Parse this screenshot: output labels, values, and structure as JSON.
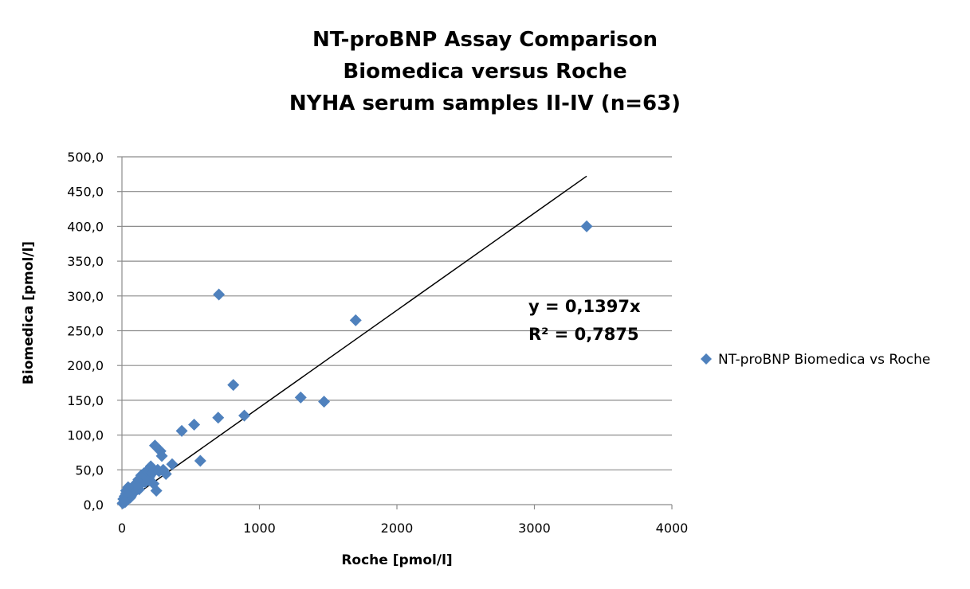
{
  "chart_data": {
    "type": "scatter",
    "title": [
      "NT-proBNP Assay Comparison",
      "Biomedica versus Roche",
      "NYHA serum samples II-IV (n=63)"
    ],
    "xlabel": "Roche [pmol/l]",
    "ylabel": "Biomedica [pmol/l]",
    "xlim": [
      0,
      4000
    ],
    "ylim": [
      0,
      500
    ],
    "x_ticks": [
      "0",
      "1000",
      "2000",
      "3000",
      "4000"
    ],
    "y_ticks": [
      "0,0",
      "50,0",
      "100,0",
      "150,0",
      "200,0",
      "250,0",
      "300,0",
      "350,0",
      "400,0",
      "450,0",
      "500,0"
    ],
    "x_tick_values": [
      0,
      1000,
      2000,
      3000,
      4000
    ],
    "y_tick_values": [
      0,
      50,
      100,
      150,
      200,
      250,
      300,
      350,
      400,
      450,
      500
    ],
    "grid": "horizontal",
    "legend_position": "right",
    "series": [
      {
        "name": "NT-proBNP Biomedica vs Roche",
        "color": "#4f81bd",
        "marker": "diamond",
        "x": [
          3380,
          705,
          1700,
          810,
          1300,
          1470,
          890,
          700,
          525,
          435,
          570,
          365,
          320,
          240,
          280,
          290,
          260,
          210,
          250,
          230,
          200,
          185,
          170,
          150,
          140,
          130,
          120,
          110,
          100,
          95,
          90,
          85,
          80,
          75,
          70,
          65,
          60,
          55,
          50,
          45,
          40,
          35,
          30,
          25,
          20,
          15,
          10,
          5,
          160,
          145,
          135,
          125,
          115,
          105,
          180,
          195,
          220,
          270,
          300,
          60,
          45,
          30,
          25
        ],
        "y": [
          400,
          302,
          265,
          172,
          154,
          148,
          128,
          125,
          115,
          106,
          63,
          58,
          44,
          85,
          77,
          70,
          50,
          55,
          20,
          30,
          40,
          38,
          32,
          35,
          42,
          28,
          36,
          25,
          30,
          22,
          18,
          26,
          20,
          15,
          24,
          12,
          18,
          10,
          22,
          8,
          14,
          6,
          20,
          5,
          12,
          3,
          8,
          2,
          45,
          40,
          30,
          22,
          33,
          27,
          48,
          35,
          45,
          48,
          50,
          10,
          25,
          16,
          4
        ]
      }
    ],
    "trendline": {
      "equation": "y = 0,1397x",
      "r_squared": "R² = 0,7875",
      "slope": 0.1397,
      "x_range": [
        20,
        3380
      ]
    }
  }
}
